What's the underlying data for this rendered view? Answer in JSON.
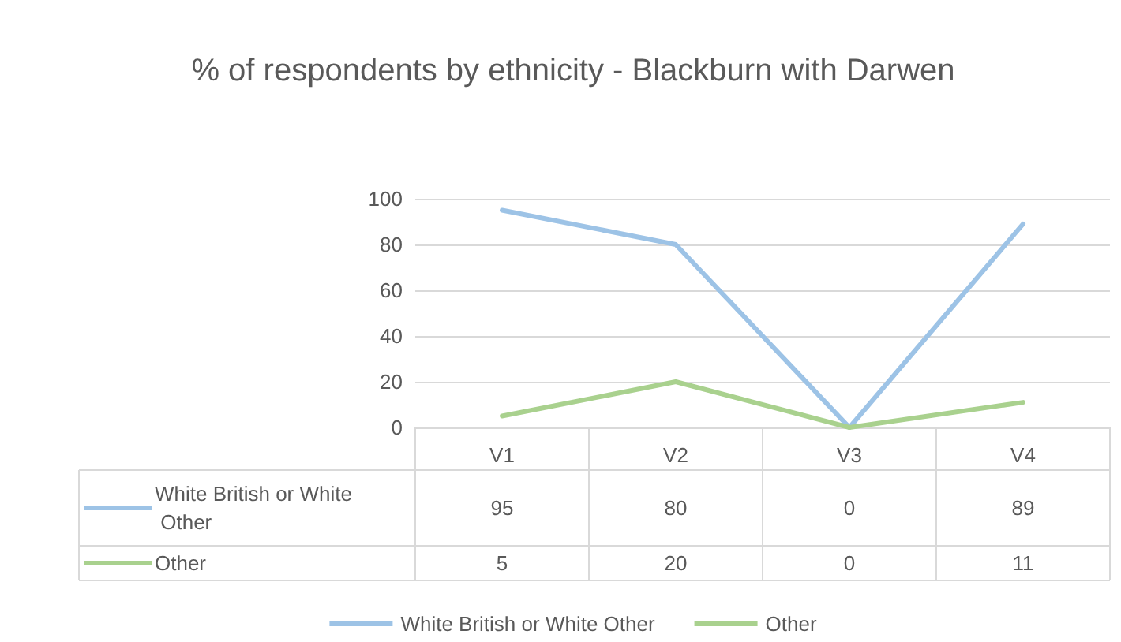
{
  "chart_data": {
    "type": "line",
    "title": "% of respondents by ethnicity - Blackburn with Darwen",
    "categories": [
      "V1",
      "V2",
      "V3",
      "V4"
    ],
    "series": [
      {
        "name": "White British or White Other",
        "color": "#9dc3e6",
        "values": [
          95,
          80,
          0,
          89
        ]
      },
      {
        "name": "Other",
        "color": "#a9d18e",
        "values": [
          5,
          20,
          0,
          11
        ]
      }
    ],
    "ylim": [
      0,
      100
    ],
    "yticks": [
      0,
      20,
      40,
      60,
      80,
      100
    ],
    "grid": "y",
    "legend": "bottom",
    "marker": "none",
    "line_style": "solid",
    "data_labels": true
  }
}
